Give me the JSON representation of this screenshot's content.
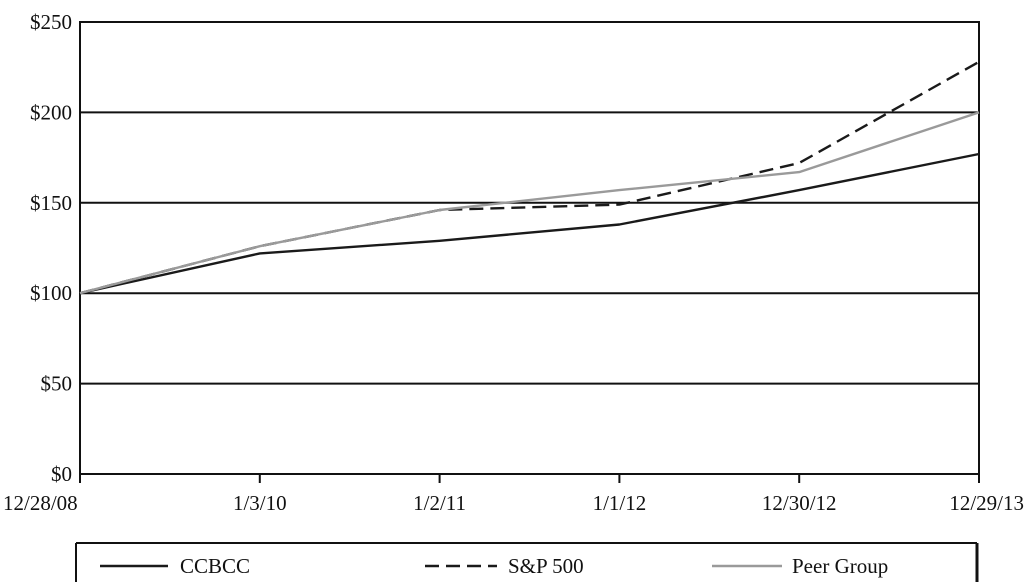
{
  "chart_data": {
    "type": "line",
    "title": "",
    "xlabel": "",
    "ylabel": "",
    "categories": [
      "12/28/08",
      "1/3/10",
      "1/2/11",
      "1/1/12",
      "12/30/12",
      "12/29/13"
    ],
    "ylim": [
      0,
      250
    ],
    "yticks": [
      0,
      50,
      100,
      150,
      200,
      250
    ],
    "ytick_labels": [
      "$0",
      "$50",
      "$100",
      "$150",
      "$200",
      "$250"
    ],
    "grid": "horizontal",
    "legend_position": "bottom",
    "series": [
      {
        "name": "CCBCC",
        "values": [
          100,
          122,
          129,
          138,
          157,
          177
        ],
        "color": "#1a1a1a",
        "style": "solid"
      },
      {
        "name": "S&P 500",
        "values": [
          100,
          126,
          146,
          149,
          172,
          228
        ],
        "color": "#1a1a1a",
        "style": "dashed"
      },
      {
        "name": "Peer Group",
        "values": [
          100,
          126,
          146,
          157,
          167,
          200
        ],
        "color": "#9a9a9a",
        "style": "solid"
      }
    ]
  }
}
